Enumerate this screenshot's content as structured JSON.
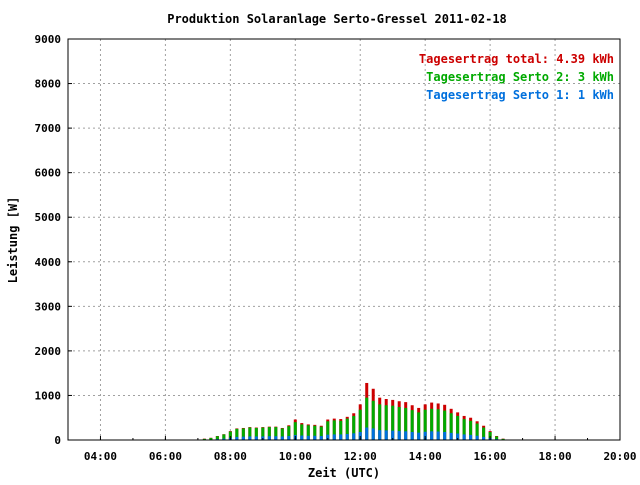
{
  "chart_data": {
    "type": "bar",
    "title": "Produktion Solaranlage Serto-Gressel 2011-02-18",
    "xlabel": "Zeit (UTC)",
    "ylabel": "Leistung [W]",
    "xlim": [
      3.0,
      20.0
    ],
    "ylim": [
      0,
      9000
    ],
    "x_ticks": [
      "04:00",
      "06:00",
      "08:00",
      "10:00",
      "12:00",
      "14:00",
      "16:00",
      "18:00",
      "20:00"
    ],
    "y_ticks": [
      "0",
      "1000",
      "2000",
      "3000",
      "4000",
      "5000",
      "6000",
      "7000",
      "8000",
      "9000"
    ],
    "grid": true,
    "legend_position": "top-right",
    "colors": {
      "total": "#cc0000",
      "serto2": "#00aa00",
      "serto1": "#0070dd"
    },
    "legend": [
      {
        "key": "total",
        "label": "Tagesertrag total:",
        "value": "4.39 kWh"
      },
      {
        "key": "serto2",
        "label": "Tagesertrag Serto 2:",
        "value": "3 kWh"
      },
      {
        "key": "serto1",
        "label": "Tagesertrag Serto 1:",
        "value": "1 kWh"
      }
    ],
    "series": [
      {
        "name": "Tagesertrag total",
        "values": [
          [
            7.0,
            10
          ],
          [
            7.2,
            30
          ],
          [
            7.4,
            50
          ],
          [
            7.6,
            90
          ],
          [
            7.8,
            130
          ],
          [
            8.0,
            200
          ],
          [
            8.2,
            260
          ],
          [
            8.4,
            270
          ],
          [
            8.6,
            290
          ],
          [
            8.8,
            280
          ],
          [
            9.0,
            290
          ],
          [
            9.2,
            300
          ],
          [
            9.4,
            300
          ],
          [
            9.6,
            270
          ],
          [
            9.8,
            330
          ],
          [
            10.0,
            460
          ],
          [
            10.2,
            380
          ],
          [
            10.4,
            350
          ],
          [
            10.6,
            340
          ],
          [
            10.8,
            320
          ],
          [
            11.0,
            460
          ],
          [
            11.2,
            480
          ],
          [
            11.4,
            470
          ],
          [
            11.6,
            520
          ],
          [
            11.8,
            600
          ],
          [
            12.0,
            800
          ],
          [
            12.2,
            1280
          ],
          [
            12.4,
            1150
          ],
          [
            12.6,
            950
          ],
          [
            12.8,
            920
          ],
          [
            13.0,
            900
          ],
          [
            13.2,
            870
          ],
          [
            13.4,
            850
          ],
          [
            13.6,
            780
          ],
          [
            13.8,
            720
          ],
          [
            14.0,
            800
          ],
          [
            14.2,
            840
          ],
          [
            14.4,
            820
          ],
          [
            14.6,
            790
          ],
          [
            14.8,
            700
          ],
          [
            15.0,
            620
          ],
          [
            15.2,
            540
          ],
          [
            15.4,
            500
          ],
          [
            15.6,
            420
          ],
          [
            15.8,
            320
          ],
          [
            16.0,
            200
          ],
          [
            16.2,
            90
          ],
          [
            16.4,
            30
          ],
          [
            16.6,
            10
          ]
        ]
      },
      {
        "name": "Tagesertrag Serto 2",
        "values": [
          [
            7.0,
            8
          ],
          [
            7.2,
            25
          ],
          [
            7.4,
            45
          ],
          [
            7.6,
            85
          ],
          [
            7.8,
            125
          ],
          [
            8.0,
            190
          ],
          [
            8.2,
            250
          ],
          [
            8.4,
            260
          ],
          [
            8.6,
            280
          ],
          [
            8.8,
            270
          ],
          [
            9.0,
            280
          ],
          [
            9.2,
            290
          ],
          [
            9.4,
            290
          ],
          [
            9.6,
            260
          ],
          [
            9.8,
            310
          ],
          [
            10.0,
            400
          ],
          [
            10.2,
            350
          ],
          [
            10.4,
            330
          ],
          [
            10.6,
            320
          ],
          [
            10.8,
            300
          ],
          [
            11.0,
            420
          ],
          [
            11.2,
            440
          ],
          [
            11.4,
            430
          ],
          [
            11.6,
            480
          ],
          [
            11.8,
            540
          ],
          [
            12.0,
            680
          ],
          [
            12.2,
            950
          ],
          [
            12.4,
            880
          ],
          [
            12.6,
            800
          ],
          [
            12.8,
            780
          ],
          [
            13.0,
            770
          ],
          [
            13.2,
            740
          ],
          [
            13.4,
            720
          ],
          [
            13.6,
            670
          ],
          [
            13.8,
            620
          ],
          [
            14.0,
            680
          ],
          [
            14.2,
            700
          ],
          [
            14.4,
            690
          ],
          [
            14.6,
            660
          ],
          [
            14.8,
            600
          ],
          [
            15.0,
            540
          ],
          [
            15.2,
            470
          ],
          [
            15.4,
            430
          ],
          [
            15.6,
            370
          ],
          [
            15.8,
            280
          ],
          [
            16.0,
            180
          ],
          [
            16.2,
            80
          ],
          [
            16.4,
            25
          ],
          [
            16.6,
            8
          ]
        ]
      },
      {
        "name": "Tagesertrag Serto 1",
        "values": [
          [
            7.0,
            2
          ],
          [
            7.2,
            5
          ],
          [
            7.4,
            10
          ],
          [
            7.6,
            20
          ],
          [
            7.8,
            30
          ],
          [
            8.0,
            50
          ],
          [
            8.2,
            70
          ],
          [
            8.4,
            75
          ],
          [
            8.6,
            80
          ],
          [
            8.8,
            80
          ],
          [
            9.0,
            80
          ],
          [
            9.2,
            85
          ],
          [
            9.4,
            85
          ],
          [
            9.6,
            80
          ],
          [
            9.8,
            90
          ],
          [
            10.0,
            110
          ],
          [
            10.2,
            100
          ],
          [
            10.4,
            95
          ],
          [
            10.6,
            95
          ],
          [
            10.8,
            90
          ],
          [
            11.0,
            120
          ],
          [
            11.2,
            125
          ],
          [
            11.4,
            125
          ],
          [
            11.6,
            135
          ],
          [
            11.8,
            150
          ],
          [
            12.0,
            180
          ],
          [
            12.2,
            280
          ],
          [
            12.4,
            260
          ],
          [
            12.6,
            220
          ],
          [
            12.8,
            215
          ],
          [
            13.0,
            210
          ],
          [
            13.2,
            200
          ],
          [
            13.4,
            195
          ],
          [
            13.6,
            180
          ],
          [
            13.8,
            165
          ],
          [
            14.0,
            185
          ],
          [
            14.2,
            195
          ],
          [
            14.4,
            190
          ],
          [
            14.6,
            180
          ],
          [
            14.8,
            160
          ],
          [
            15.0,
            145
          ],
          [
            15.2,
            125
          ],
          [
            15.4,
            115
          ],
          [
            15.6,
            95
          ],
          [
            15.8,
            70
          ],
          [
            16.0,
            45
          ],
          [
            16.2,
            20
          ],
          [
            16.4,
            6
          ],
          [
            16.6,
            2
          ]
        ]
      }
    ]
  }
}
